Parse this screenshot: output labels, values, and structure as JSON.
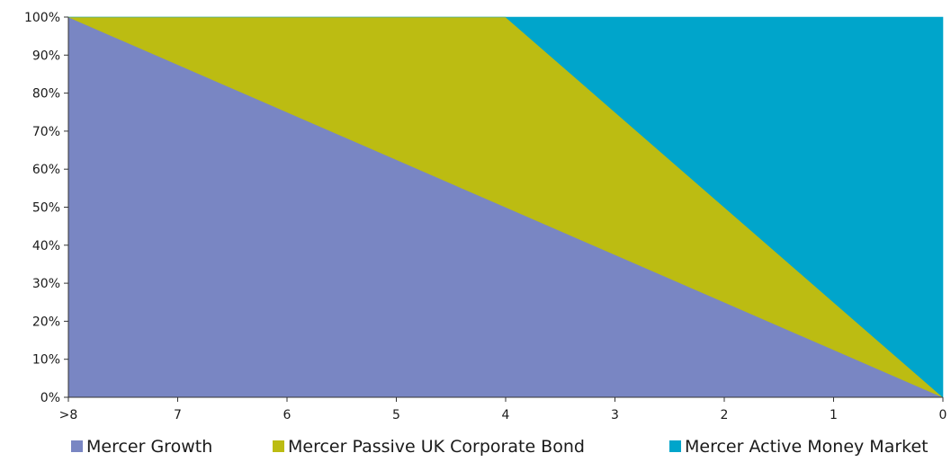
{
  "chart_data": {
    "type": "area",
    "stacked": true,
    "percent": true,
    "categories": [
      ">8",
      "7",
      "6",
      "5",
      "4",
      "3",
      "2",
      "1",
      "0"
    ],
    "ylim": [
      0,
      100
    ],
    "ytick_labels": [
      "0%",
      "10%",
      "20%",
      "30%",
      "40%",
      "50%",
      "60%",
      "70%",
      "80%",
      "90%",
      "100%"
    ],
    "grid": false,
    "legend_position": "bottom",
    "series": [
      {
        "name": "Mercer Growth",
        "color": "#7986c3",
        "values": [
          100,
          87.5,
          75,
          62.5,
          50,
          37.5,
          25,
          12.5,
          0
        ]
      },
      {
        "name": "Mercer Passive UK Corporate Bond",
        "color": "#bcbc12",
        "values": [
          0,
          12.5,
          25,
          37.5,
          50,
          37.5,
          25,
          12.5,
          0
        ]
      },
      {
        "name": "Mercer Active Money Market",
        "color": "#00a5cb",
        "values": [
          0,
          0,
          0,
          0,
          0,
          25,
          50,
          75,
          100
        ]
      }
    ]
  }
}
